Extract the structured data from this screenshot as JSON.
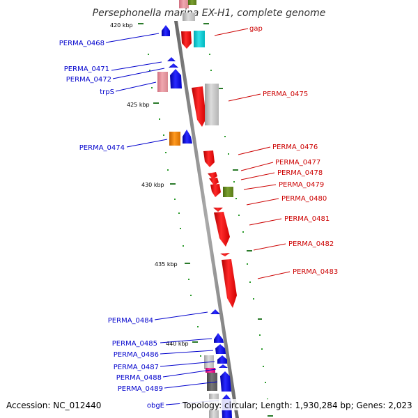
{
  "title": "Persephonella marina EX-H1, complete genome",
  "footer": {
    "accession": "Accession: NC_012440",
    "summary": "Topology: circular; Length: 1,930,284 bp; Genes: 2,023"
  },
  "scale_labels": [
    "420 kbp",
    "425 kbp",
    "430 kbp",
    "435 kbp",
    "440 kbp"
  ],
  "left_labels": [
    "PERMA_0468",
    "PERMA_0471",
    "PERMA_0472",
    "trpS",
    "PERMA_0474",
    "PERMA_0484",
    "PERMA_0485",
    "PERMA_0486",
    "PERMA_0487",
    "PERMA_0488",
    "PERMA_0489",
    "obgE"
  ],
  "right_labels": [
    "gap",
    "PERMA_0475",
    "PERMA_0476",
    "PERMA_0477",
    "PERMA_0478",
    "PERMA_0479",
    "PERMA_0480",
    "PERMA_0481",
    "PERMA_0482",
    "PERMA_0483"
  ],
  "colors": {
    "forward_strand": "#0000ff",
    "reverse_strand": "#ff0000",
    "label_left": "#0000cc",
    "label_right": "#cc0000",
    "backbone": "#888888",
    "tick": "#2a7a2a"
  }
}
